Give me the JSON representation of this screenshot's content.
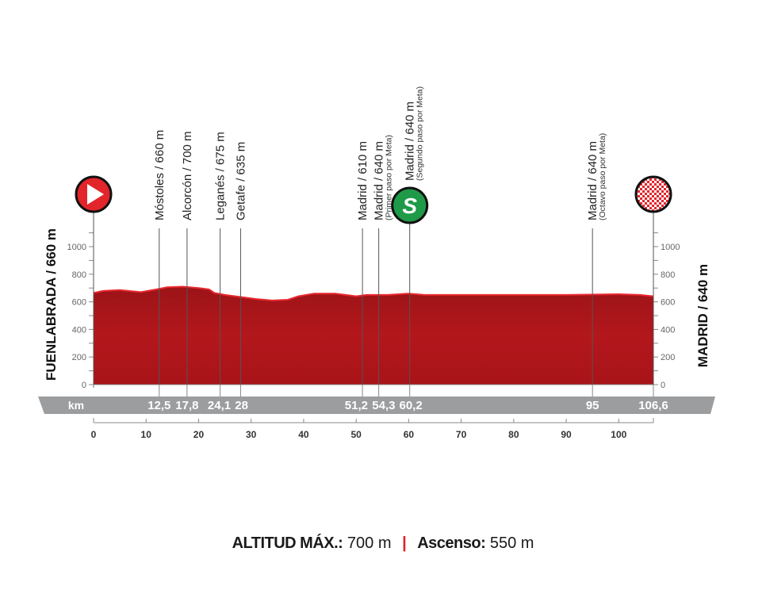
{
  "chart_data": {
    "type": "area",
    "start_label": "FUENLABRADA / 660 m",
    "finish_label": "MADRID / 640 m",
    "km_label": "km",
    "xlim": [
      0,
      106.6
    ],
    "ylim": [
      0,
      1000
    ],
    "x_ticks": [
      0,
      10,
      20,
      30,
      40,
      50,
      60,
      70,
      80,
      90,
      100
    ],
    "y_ticks": [
      0,
      200,
      400,
      600,
      800,
      1000
    ],
    "profile": {
      "km": [
        0,
        2,
        5,
        9,
        12,
        14,
        17,
        20,
        22,
        23,
        25,
        28,
        31,
        34,
        37,
        39,
        42,
        46,
        48,
        50,
        52,
        56,
        60,
        63,
        70,
        80,
        90,
        100,
        104,
        106.6
      ],
      "altitude": [
        665,
        680,
        685,
        670,
        690,
        705,
        710,
        700,
        690,
        665,
        650,
        635,
        620,
        610,
        615,
        640,
        660,
        660,
        650,
        640,
        650,
        650,
        660,
        650,
        650,
        650,
        650,
        655,
        650,
        640
      ]
    },
    "waypoints": [
      {
        "km": 12.5,
        "km_label": "12,5",
        "name": "Móstoles / 660 m",
        "note": ""
      },
      {
        "km": 17.8,
        "km_label": "17,8",
        "name": "Alcorcón / 700 m",
        "note": ""
      },
      {
        "km": 24.1,
        "km_label": "24,1",
        "name": "Leganés / 675 m",
        "note": ""
      },
      {
        "km": 28,
        "km_label": "28",
        "name": "Getafe / 635 m",
        "note": ""
      },
      {
        "km": 51.2,
        "km_label": "51,2",
        "name": "Madrid / 610 m",
        "note": ""
      },
      {
        "km": 54.3,
        "km_label": "54,3",
        "name": "Madrid / 640 m",
        "note": "(Primer paso por Meta)"
      },
      {
        "km": 60.2,
        "km_label": "60,2",
        "name": "Madrid / 640 m",
        "note": "(Segundo paso por Meta)",
        "icon": "sprint-icon",
        "icon_letter": "S"
      },
      {
        "km": 95,
        "km_label": "95",
        "name": "Madrid / 640 m",
        "note": "(Octavo paso por Meta)"
      },
      {
        "km": 106.6,
        "km_label": "106,6",
        "name": "",
        "note": ""
      }
    ],
    "colors": {
      "profile": "#b3171c",
      "profile_top": "#e8282e",
      "band": "#9b9d9f",
      "start": "#e2252b",
      "sprint": "#1f9a48"
    }
  },
  "footer": {
    "max_alt_label": "ALTITUD MÁX.:",
    "max_alt_value": "700 m",
    "separator": "|",
    "ascent_label": "Ascenso:",
    "ascent_value": "550 m"
  }
}
